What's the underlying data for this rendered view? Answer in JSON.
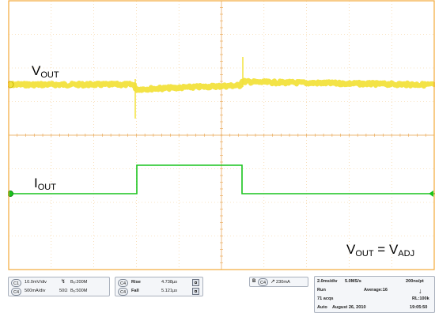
{
  "screen": {
    "labels": {
      "vout_main": "V",
      "vout_sub": "OUT",
      "iout_main": "I",
      "iout_sub": "OUT",
      "formula_v1": "V",
      "formula_v1_sub": "OUT",
      "formula_eq": " = ",
      "formula_v2": "V",
      "formula_v2_sub": "ADJ"
    },
    "colors": {
      "ch1_trace": "#f2e23c",
      "ch4_trace": "#19c41d",
      "graticule": "#f2a93a"
    }
  },
  "settings": {
    "channels": {
      "ch1_tag": "C1",
      "ch1_scale": "10.0mV/div",
      "ch4_tag": "C4",
      "ch4_scale": "500mA/div",
      "bw1": "Bₑ:200M",
      "impedance": "50Ω",
      "bw2": "Bₑ:500M"
    },
    "measurements": {
      "rise_tag": "C4",
      "rise_label": "Rise",
      "rise_value": "4.738µs",
      "fall_tag": "C4",
      "fall_label": "Fall",
      "fall_value": "5.121µs"
    },
    "trigger": {
      "tag": "C4",
      "level": "230mA"
    },
    "acquisition": {
      "timebase": "2.0ms/div",
      "sample_rate": "5.0MS/s",
      "resolution": "200ns/pt",
      "state": "Run",
      "mode": "Average:16",
      "acqs": "71 acqs",
      "record_length": "RL:100k",
      "trigger_mode": "Auto",
      "date": "August 26, 2010",
      "time": "19:05:50"
    }
  }
}
